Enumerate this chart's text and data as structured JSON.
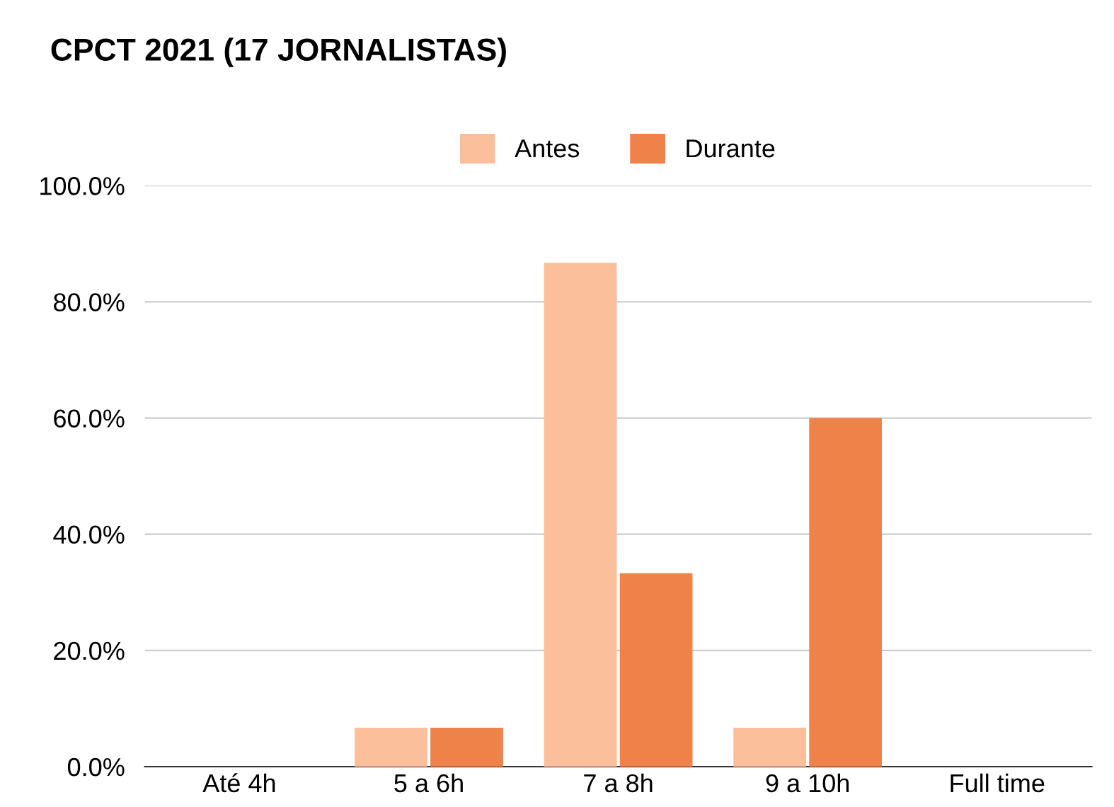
{
  "chart_data": {
    "type": "bar",
    "title": "CPCT 2021 (17 JORNALISTAS)",
    "categories": [
      "Até 4h",
      "5 a 6h",
      "7 a 8h",
      "9 a 10h",
      "Full time"
    ],
    "series": [
      {
        "name": "Antes",
        "color": "#fcbf9b",
        "values": [
          0,
          6.7,
          86.7,
          6.7,
          0
        ]
      },
      {
        "name": "Durante",
        "color": "#ee8249",
        "values": [
          0,
          6.7,
          33.3,
          60,
          0
        ]
      }
    ],
    "ylim": [
      0,
      100
    ],
    "yticks": [
      {
        "value": 0,
        "label": "0.0%"
      },
      {
        "value": 20,
        "label": "20.0%"
      },
      {
        "value": 40,
        "label": "40.0%"
      },
      {
        "value": 60,
        "label": "60.0%"
      },
      {
        "value": 80,
        "label": "80.0%"
      },
      {
        "value": 100,
        "label": "100.0%"
      }
    ],
    "grid": "y",
    "legend": "top"
  }
}
